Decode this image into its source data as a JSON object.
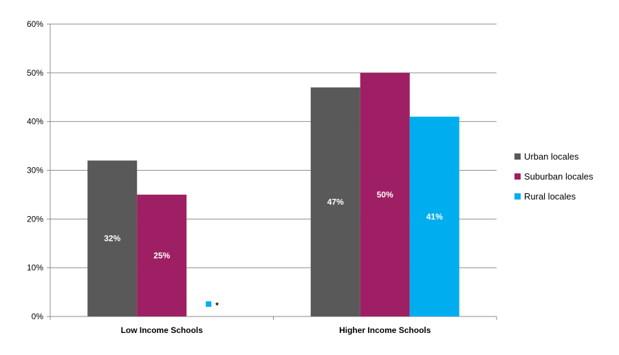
{
  "chart_data": {
    "type": "bar",
    "categories": [
      "Low Income Schools",
      "Higher Income Schools"
    ],
    "series": [
      {
        "name": "Urban locales",
        "color": "#595959",
        "values": [
          32,
          47
        ],
        "labels": [
          "32%",
          "47%"
        ]
      },
      {
        "name": "Suburban locales",
        "color": "#9e1f63",
        "values": [
          25,
          50
        ],
        "labels": [
          "25%",
          "50%"
        ]
      },
      {
        "name": "Rural locales",
        "color": "#00aeef",
        "values": [
          null,
          41
        ],
        "labels": [
          "*",
          "41%"
        ]
      }
    ],
    "ylim": [
      0,
      60
    ],
    "yticks": [
      "0%",
      "10%",
      "20%",
      "30%",
      "40%",
      "50%",
      "60%"
    ],
    "grid": true,
    "legend": "right"
  }
}
